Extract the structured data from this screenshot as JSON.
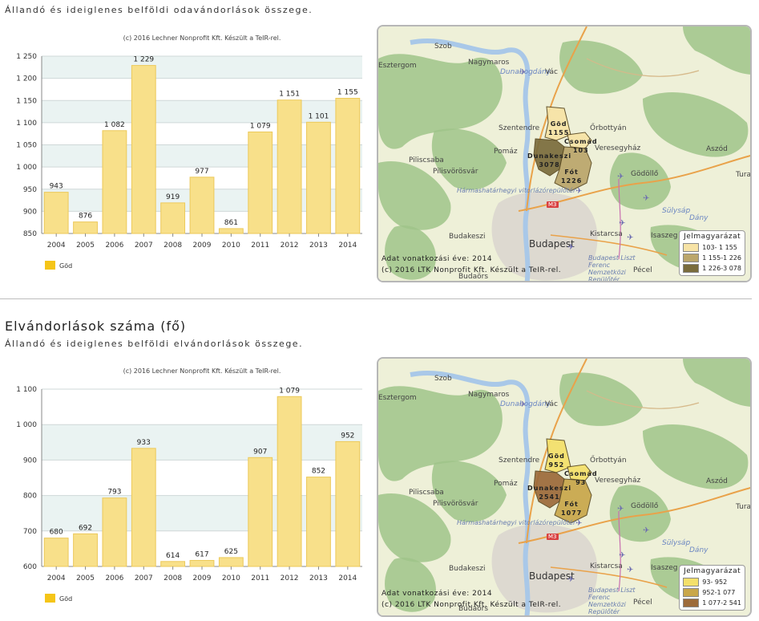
{
  "section1": {
    "description": "Állandó és ideiglenes belföldi odavándorlások összege.",
    "chart_data": {
      "type": "bar",
      "credit": "(c) 2016 Lechner Nonprofit Kft. Készült a TeIR-rel.",
      "categories": [
        "2004",
        "2005",
        "2006",
        "2007",
        "2008",
        "2009",
        "2010",
        "2011",
        "2012",
        "2013",
        "2014"
      ],
      "series": [
        {
          "name": "Göd",
          "values": [
            943,
            876,
            1082,
            1229,
            919,
            977,
            861,
            1079,
            1151,
            1101,
            1155
          ]
        }
      ],
      "value_labels": [
        "943",
        "876",
        "1 082",
        "1 229",
        "919",
        "977",
        "861",
        "1 079",
        "1 151",
        "1 101",
        "1 155"
      ],
      "ylim": [
        850,
        1250
      ],
      "yticks": [
        850,
        900,
        950,
        1000,
        1050,
        1100,
        1150,
        1200,
        1250
      ],
      "ytick_labels": [
        "850",
        "900",
        "950",
        "1 000",
        "1 050",
        "1 100",
        "1 150",
        "1 200",
        "1 250"
      ],
      "bar_color": "#f8e08a",
      "legend_color": "#f5c518",
      "legend_placement": "bottom-left",
      "grid": true
    },
    "map": {
      "regions": [
        {
          "name": "Göd",
          "value": "1155"
        },
        {
          "name": "Csomád",
          "value": "103"
        },
        {
          "name": "Dunakeszi",
          "value": "3078"
        },
        {
          "name": "Fót",
          "value": "1226"
        }
      ],
      "legend_title": "Jelmagyarázat",
      "legend": [
        {
          "label": "103- 1 155",
          "color": "#f7e3a6"
        },
        {
          "label": "1 155-1 226",
          "color": "#bba66b"
        },
        {
          "label": "1 226-3 078",
          "color": "#7a6c3c"
        }
      ],
      "footer1": "Adat vonatkozási éve: 2014",
      "footer2": "(c) 2016 LTK Nonprofit Kft. Készült a TeIR-rel."
    }
  },
  "section2": {
    "title": "Elvándorlások száma (fő)",
    "description": "Állandó és ideiglenes belföldi elvándorlások összege.",
    "chart_data": {
      "type": "bar",
      "credit": "(c) 2016 Lechner Nonprofit Kft. Készült a TeIR-rel.",
      "categories": [
        "2004",
        "2005",
        "2006",
        "2007",
        "2008",
        "2009",
        "2010",
        "2011",
        "2012",
        "2013",
        "2014"
      ],
      "series": [
        {
          "name": "Göd",
          "values": [
            680,
            692,
            793,
            933,
            614,
            617,
            625,
            907,
            1079,
            852,
            952
          ]
        }
      ],
      "value_labels": [
        "680",
        "692",
        "793",
        "933",
        "614",
        "617",
        "625",
        "907",
        "1 079",
        "852",
        "952"
      ],
      "ylim": [
        600,
        1100
      ],
      "yticks": [
        600,
        700,
        800,
        900,
        1000,
        1100
      ],
      "ytick_labels": [
        "600",
        "700",
        "800",
        "900",
        "1 000",
        "1 100"
      ],
      "bar_color": "#f8e08a",
      "legend_color": "#f5c518",
      "legend_placement": "bottom-left",
      "grid": true
    },
    "map": {
      "regions": [
        {
          "name": "Göd",
          "value": "952"
        },
        {
          "name": "Csomád",
          "value": "93"
        },
        {
          "name": "Dunakeszi",
          "value": "2541"
        },
        {
          "name": "Fót",
          "value": "1077"
        }
      ],
      "legend_title": "Jelmagyarázat",
      "legend": [
        {
          "label": "93-  952",
          "color": "#f4e06a"
        },
        {
          "label": "952-1 077",
          "color": "#c9a74a"
        },
        {
          "label": "1 077-2 541",
          "color": "#9c6a3a"
        }
      ],
      "footer1": "Adat vonatkozási éve: 2014",
      "footer2": "(c) 2016 LTK Nonprofit Kft. Készült a TeIR-rel."
    }
  },
  "map_places": {
    "szob": "Szob",
    "nagymaros": "Nagymaros",
    "dunabogdany": "Dunabogdány",
    "vac": "Vác",
    "szentendre": "Szentendre",
    "orbottyan": "Őrbottyán",
    "pomaz": "Pomáz",
    "veresegyhaz": "Veresegyház",
    "aszod": "Aszód",
    "piliscsaba": "Piliscsaba",
    "pilisvorosvar": "Pilisvörösvár",
    "godollo": "Gödöllő",
    "tura": "Tura",
    "harmashatarhegy": "Hármashatárhegyi vitorlázórepülőtér",
    "kistarcsa": "Kistarcsa",
    "sulysap": "Sülysáp",
    "isaszeg": "Isaszeg",
    "budakeszi": "Budakeszi",
    "budapest": "Budapest",
    "liszt": "Budapest Liszt Ferenc Nemzetközi Repülőtér",
    "pecel": "Pécel",
    "budaors": "Budaörs",
    "maglod": "Maglód",
    "dany": "Dány",
    "esztergom": "Esztergom",
    "m3": "M3"
  }
}
